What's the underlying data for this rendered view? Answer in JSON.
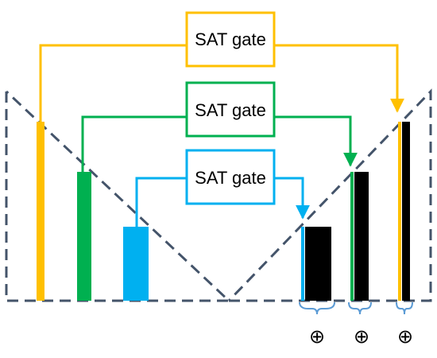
{
  "gates": [
    {
      "label": "SAT gate",
      "color": "#FFC000"
    },
    {
      "label": "SAT gate",
      "color": "#00B050"
    },
    {
      "label": "SAT gate",
      "color": "#00B0F0"
    }
  ],
  "encoder_bars": [
    {
      "color": "#FFC000"
    },
    {
      "color": "#00B050"
    },
    {
      "color": "#00B0F0"
    }
  ],
  "decoder_bars": [
    {
      "color": "#000000",
      "concat_color": "#00B0F0"
    },
    {
      "color": "#000000",
      "concat_color": "#00B050"
    },
    {
      "color": "#000000",
      "concat_color": "#FFC000"
    }
  ],
  "concat_symbol": "⊕",
  "v_outline_color": "#44546A",
  "brace_color": "#5B9BD5"
}
